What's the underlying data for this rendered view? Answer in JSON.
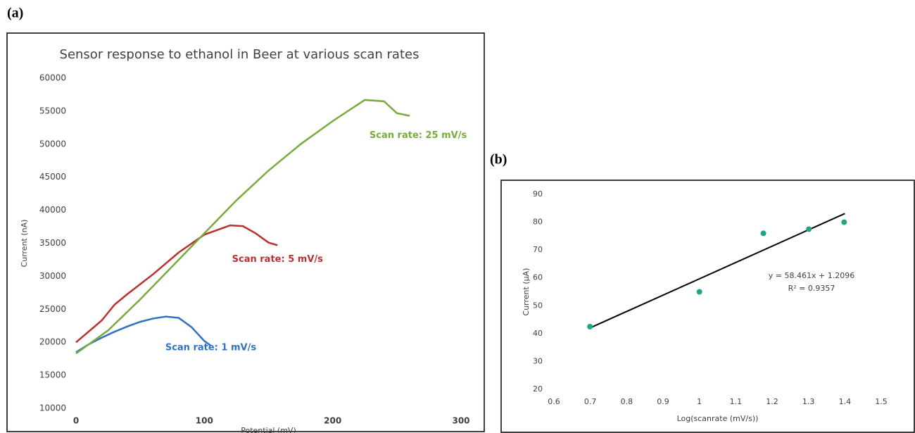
{
  "chart_data": [
    {
      "type": "line",
      "panel": "(a)",
      "title": "Sensor response to ethanol in Beer at various scan rates",
      "x_label": "Potential (mV)",
      "y_label": "Current (nA)",
      "xlim": [
        0,
        300
      ],
      "xticks": [
        0,
        100,
        200,
        300
      ],
      "ylim": [
        10000,
        60000
      ],
      "yticks": [
        10000,
        15000,
        20000,
        25000,
        30000,
        35000,
        40000,
        45000,
        50000,
        55000,
        60000
      ],
      "grid": false,
      "series": [
        {
          "name": "Scan rate: 1 mV/s",
          "color": "#2f72c4",
          "x": [
            0,
            10,
            20,
            30,
            40,
            50,
            60,
            70,
            80,
            90,
            100,
            105
          ],
          "values": [
            18500,
            19700,
            20700,
            21600,
            22400,
            23100,
            23600,
            23900,
            23700,
            22300,
            20200,
            19500
          ]
        },
        {
          "name": "Scan rate: 5 mV/s",
          "color": "#b8312f",
          "x": [
            0,
            20,
            30,
            40,
            60,
            80,
            100,
            120,
            130,
            140,
            150,
            157
          ],
          "values": [
            20000,
            23300,
            25700,
            27300,
            30300,
            33600,
            36300,
            37700,
            37600,
            36500,
            35100,
            34700
          ]
        },
        {
          "name": "Scan rate: 25 mV/s",
          "color": "#77ac3d",
          "x": [
            0,
            25,
            50,
            75,
            100,
            125,
            150,
            175,
            200,
            225,
            240,
            250,
            260
          ],
          "values": [
            18300,
            21800,
            26500,
            31500,
            36500,
            41500,
            46000,
            50000,
            53500,
            56700,
            56500,
            54700,
            54300
          ]
        }
      ]
    },
    {
      "type": "scatter",
      "panel": "(b)",
      "x_label": "Log(scanrate (mV/s))",
      "y_label": "Current (μA)",
      "xlim": [
        0.6,
        1.5
      ],
      "xticks": [
        0.6,
        0.7,
        0.8,
        0.9,
        1,
        1.1,
        1.2,
        1.3,
        1.4,
        1.5
      ],
      "ylim": [
        20,
        90
      ],
      "yticks": [
        20,
        30,
        40,
        50,
        60,
        70,
        80,
        90
      ],
      "grid": false,
      "series": [
        {
          "color": "#21a487",
          "x": [
            0.699,
            1,
            1.176,
            1.301,
            1.398
          ],
          "values": [
            42.5,
            55,
            76,
            77.5,
            80
          ]
        }
      ],
      "trendline": {
        "equation": "y = 58.461x + 1.2096",
        "r2": "R² = 0.9357",
        "color": "#000000",
        "x": [
          0.7,
          1.4
        ],
        "values": [
          42.1,
          83.1
        ]
      }
    }
  ]
}
